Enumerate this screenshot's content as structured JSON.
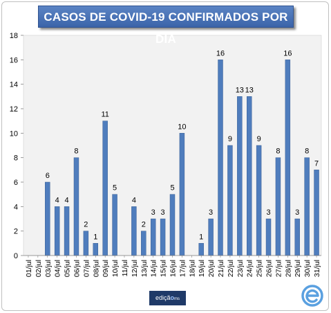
{
  "chart_data": {
    "type": "bar",
    "title": "CASOS DE COVID-19 CONFIRMADOS POR DIA",
    "xlabel": "",
    "ylabel": "",
    "categories": [
      "01/jul",
      "02/jul",
      "03/jul",
      "04/jul",
      "05/jul",
      "06/jul",
      "07/jul",
      "08/jul",
      "09/jul",
      "10/jul",
      "11/jul",
      "12/jul",
      "13/jul",
      "14/jul",
      "15/jul",
      "16/jul",
      "17/jul",
      "18/jul",
      "19/jul",
      "20/jul",
      "21/jul",
      "22/jul",
      "23/jul",
      "24/jul",
      "25/jul",
      "26/jul",
      "27/jul",
      "28/jul",
      "29/jul",
      "30/jul",
      "31/jul"
    ],
    "values": [
      0,
      0,
      6,
      4,
      4,
      8,
      2,
      1,
      11,
      5,
      0,
      4,
      2,
      3,
      3,
      5,
      10,
      0,
      1,
      3,
      16,
      9,
      13,
      13,
      9,
      3,
      8,
      16,
      3,
      8,
      7
    ],
    "data_labels": [
      "",
      "",
      "6",
      "4",
      "4",
      "8",
      "2",
      "1",
      "11",
      "5",
      "",
      "4",
      "2",
      "3",
      "3",
      "5",
      "10",
      "",
      "1",
      "3",
      "16",
      "9",
      "13",
      "13",
      "9",
      "3",
      "8",
      "16",
      "3",
      "8",
      "7"
    ],
    "yticks": [
      "0",
      "2",
      "4",
      "6",
      "8",
      "10",
      "12",
      "14",
      "16",
      "18"
    ],
    "ylim": [
      0,
      18
    ],
    "grid": false,
    "legend": "none",
    "bar_color": "#4f7dbd",
    "plot_bg": "#f2f2f2"
  },
  "footer": {
    "logo_prefix": "ediçã",
    "logo_mark": "o",
    "logo_suffix": "ms"
  }
}
